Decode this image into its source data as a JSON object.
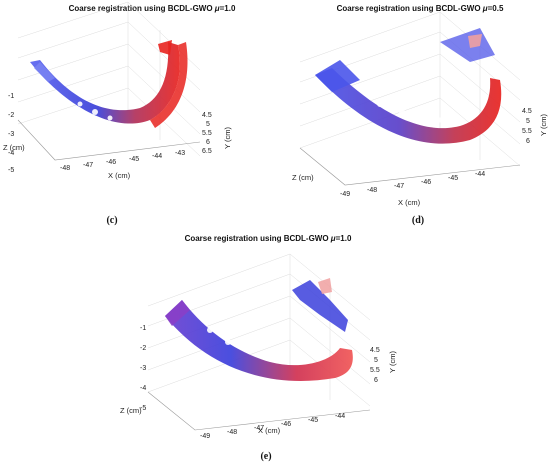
{
  "chart_data": [
    {
      "type": "scatter",
      "panel_label": "(c)",
      "title_prefix": "Coarse registration using BCDL-GWO ",
      "mu_symbol": "μ",
      "mu_value": "=1.0",
      "xlabel": "X (cm)",
      "ylabel": "Y (cm)",
      "zlabel": "Z (cm)",
      "x_ticks": [
        "-48",
        "-47",
        "-46",
        "-45",
        "-44",
        "-43"
      ],
      "y_ticks": [
        "4.5",
        "5",
        "5.5",
        "6",
        "6.5"
      ],
      "z_ticks": [
        "-1",
        "-2",
        "-3",
        "-4",
        "-5"
      ],
      "series": [
        {
          "color": "#2a35e0",
          "values": []
        },
        {
          "color": "#e8231f",
          "values": []
        }
      ]
    },
    {
      "type": "scatter",
      "panel_label": "(d)",
      "title_prefix": "Coarse registration using BCDL-GWO ",
      "mu_symbol": "μ",
      "mu_value": "=0.5",
      "xlabel": "X (cm)",
      "ylabel": "Y (cm)",
      "zlabel": "Z (cm)",
      "x_ticks": [
        "-49",
        "-48",
        "-47",
        "-46",
        "-45",
        "-44"
      ],
      "y_ticks": [
        "4.5",
        "5",
        "5.5",
        "6"
      ],
      "z_ticks": [],
      "series": [
        {
          "color": "#2a35e0",
          "values": []
        },
        {
          "color": "#e8231f",
          "values": []
        }
      ]
    },
    {
      "type": "scatter",
      "panel_label": "(e)",
      "title_prefix": "Coarse registration using BCDL-GWO ",
      "mu_symbol": "μ",
      "mu_value": "=1.0",
      "xlabel": "X (cm)",
      "ylabel": "Y (cm)",
      "zlabel": "Z (cm)",
      "x_ticks": [
        "-49",
        "-48",
        "-47",
        "-46",
        "-45",
        "-44"
      ],
      "y_ticks": [
        "4.5",
        "5",
        "5.5",
        "6"
      ],
      "z_ticks": [
        "-1",
        "-2",
        "-3",
        "-4",
        "-5"
      ],
      "series": [
        {
          "color": "#2a35e0",
          "values": []
        },
        {
          "color": "#e8231f",
          "values": []
        }
      ]
    }
  ]
}
